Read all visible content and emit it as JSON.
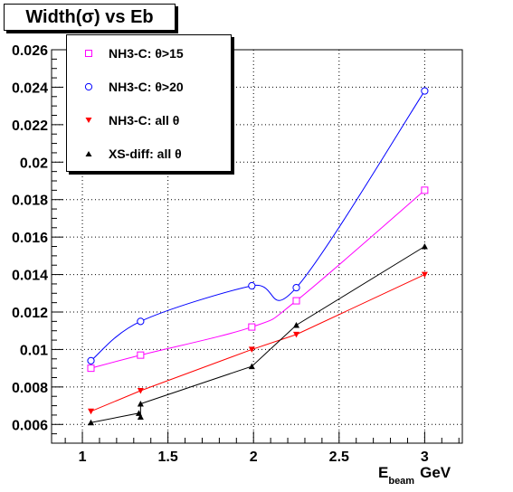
{
  "title": "Width(σ) vs Eb",
  "chart_data": {
    "type": "line",
    "title": "Width(σ) vs Eb",
    "xlabel_main": "E",
    "xlabel_sub": "beam",
    "xlabel_unit": "GeV",
    "ylabel": "",
    "xlim": [
      0.82,
      3.22
    ],
    "ylim": [
      0.005,
      0.026
    ],
    "x_ticks": [
      1,
      1.5,
      2,
      2.5,
      3
    ],
    "x_tick_labels": [
      "1",
      "1.5",
      "2",
      "2.5",
      "3"
    ],
    "y_ticks": [
      0.006,
      0.008,
      0.01,
      0.012,
      0.014,
      0.016,
      0.018,
      0.02,
      0.022,
      0.024,
      0.026
    ],
    "y_tick_labels": [
      "0.006",
      "0.008",
      "0.01",
      "0.012",
      "0.014",
      "0.016",
      "0.018",
      "0.02",
      "0.022",
      "0.024",
      "0.026"
    ],
    "grid": true,
    "legend_position": "top-left",
    "series": [
      {
        "name": "NH3-C: θ>15",
        "color": "#ff00ff",
        "marker": "open-square",
        "style": "smooth",
        "x": [
          1.05,
          1.34,
          1.99,
          2.25,
          3.0
        ],
        "y": [
          0.009,
          0.0097,
          0.0112,
          0.0126,
          0.0185
        ]
      },
      {
        "name": "NH3-C: θ>20",
        "color": "#0000ff",
        "marker": "open-circle",
        "style": "smooth",
        "x": [
          1.05,
          1.34,
          1.99,
          2.25,
          3.0
        ],
        "y": [
          0.0094,
          0.0115,
          0.0134,
          0.0133,
          0.0238
        ]
      },
      {
        "name": "NH3-C: all  θ",
        "color": "#ff0000",
        "marker": "filled-triangle-down",
        "style": "straight",
        "x": [
          1.05,
          1.34,
          1.99,
          2.25,
          3.0
        ],
        "y": [
          0.0067,
          0.0078,
          0.01,
          0.0108,
          0.014
        ]
      },
      {
        "name": "XS-diff: all θ",
        "color": "#000000",
        "marker": "filled-triangle-up",
        "style": "straight",
        "x": [
          1.05,
          1.33,
          1.34,
          1.34,
          1.99,
          2.25,
          3.0
        ],
        "y": [
          0.0061,
          0.0066,
          0.0064,
          0.0071,
          0.0091,
          0.0113,
          0.0155
        ]
      }
    ]
  }
}
